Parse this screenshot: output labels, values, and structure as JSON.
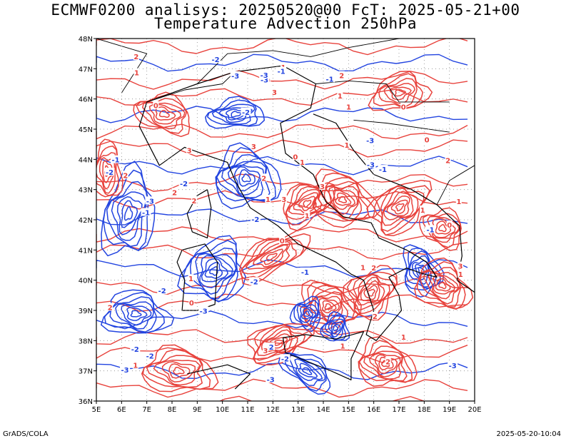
{
  "header": {
    "title_line1": "ECMWF0200 analisys: 20250520@00 FcT: 2025-05-21+00",
    "title_line2": "Temperature Advection 250hPa"
  },
  "axes": {
    "lon_labels": [
      "5E",
      "6E",
      "7E",
      "8E",
      "9E",
      "10E",
      "11E",
      "12E",
      "13E",
      "14E",
      "15E",
      "16E",
      "17E",
      "18E",
      "19E",
      "20E"
    ],
    "lat_labels": [
      "36N",
      "37N",
      "38N",
      "39N",
      "40N",
      "41N",
      "42N",
      "43N",
      "44N",
      "45N",
      "46N",
      "47N",
      "48N"
    ],
    "lon_range": [
      5,
      20
    ],
    "lat_range": [
      36,
      48
    ]
  },
  "legend_colors": {
    "warm_advection": "#e8423c",
    "cold_advection": "#2244e0",
    "coastline": "#000000",
    "grid": "#8a8a8a"
  },
  "contour_labels": [
    "0",
    "1",
    "-1",
    "2",
    "-2",
    "3",
    "-3"
  ],
  "footer": {
    "left": "GrADS/COLA",
    "right": "2025-05-20-10:04"
  }
}
